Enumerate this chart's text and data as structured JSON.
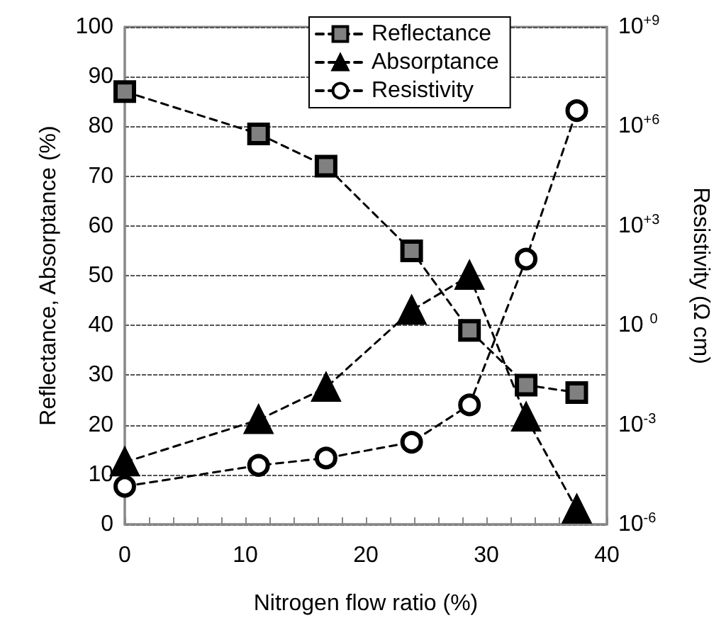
{
  "chart_data": {
    "type": "line",
    "xlabel": "Nitrogen flow ratio (%)",
    "ylabel": "Reflectance, Absorptance (%)",
    "y2label": "Resistivity (Ω cm)",
    "x": [
      0,
      11.1,
      16.7,
      23.8,
      28.6,
      33.3,
      37.5
    ],
    "series": [
      {
        "name": "Reflectance",
        "color": "#808080",
        "marker": "square",
        "values": [
          87,
          78.5,
          72,
          55,
          39,
          28,
          26.5
        ]
      },
      {
        "name": "Absorptance",
        "color": "#000000",
        "marker": "triangle",
        "values": [
          12.5,
          21,
          27.5,
          43,
          50,
          21.5,
          3
        ]
      },
      {
        "name": "Resistivity",
        "color": "#ffffff",
        "marker": "circle",
        "axis": "y2",
        "values": [
          1.4e-05,
          6e-05,
          0.0001,
          0.0003,
          0.004,
          100,
          3000000
        ]
      }
    ],
    "xlim": [
      0,
      40
    ],
    "xticks": [
      0,
      {
        "value": 2,
        "label": null
      },
      {
        "value": 4,
        "label": null
      },
      {
        "value": 6,
        "label": null
      },
      {
        "value": 8,
        "label": null
      },
      10,
      {
        "value": 12,
        "label": null
      },
      {
        "value": 14,
        "label": null
      },
      {
        "value": 16,
        "label": null
      },
      {
        "value": 18,
        "label": null
      },
      20,
      {
        "value": 22,
        "label": null
      },
      {
        "value": 24,
        "label": null
      },
      {
        "value": 26,
        "label": null
      },
      {
        "value": 28,
        "label": null
      },
      30,
      {
        "value": 32,
        "label": null
      },
      {
        "value": 34,
        "label": null
      },
      {
        "value": 36,
        "label": null
      },
      {
        "value": 38,
        "label": null
      },
      40
    ],
    "ylim": [
      0,
      100
    ],
    "yticks": [
      0,
      10,
      20,
      30,
      40,
      50,
      60,
      70,
      80,
      90,
      100
    ],
    "y2lim": [
      1e-06,
      1000000000
    ],
    "y2ticks": [
      {
        "value": 1e-06,
        "label": "10$^{-6}$"
      },
      {
        "value": 0.001,
        "label": "10$^{-3}$"
      },
      {
        "value": 1,
        "label": "10 $^{0}$"
      },
      {
        "value": 1000,
        "label": "10$^{+3}$"
      },
      {
        "value": 1000000,
        "label": "10$^{+6}$"
      },
      {
        "value": 1000000000,
        "label": "10$^{+9}$"
      }
    ],
    "log": "y2",
    "grid": "y",
    "legend": "top",
    "line_style": "dashed"
  }
}
